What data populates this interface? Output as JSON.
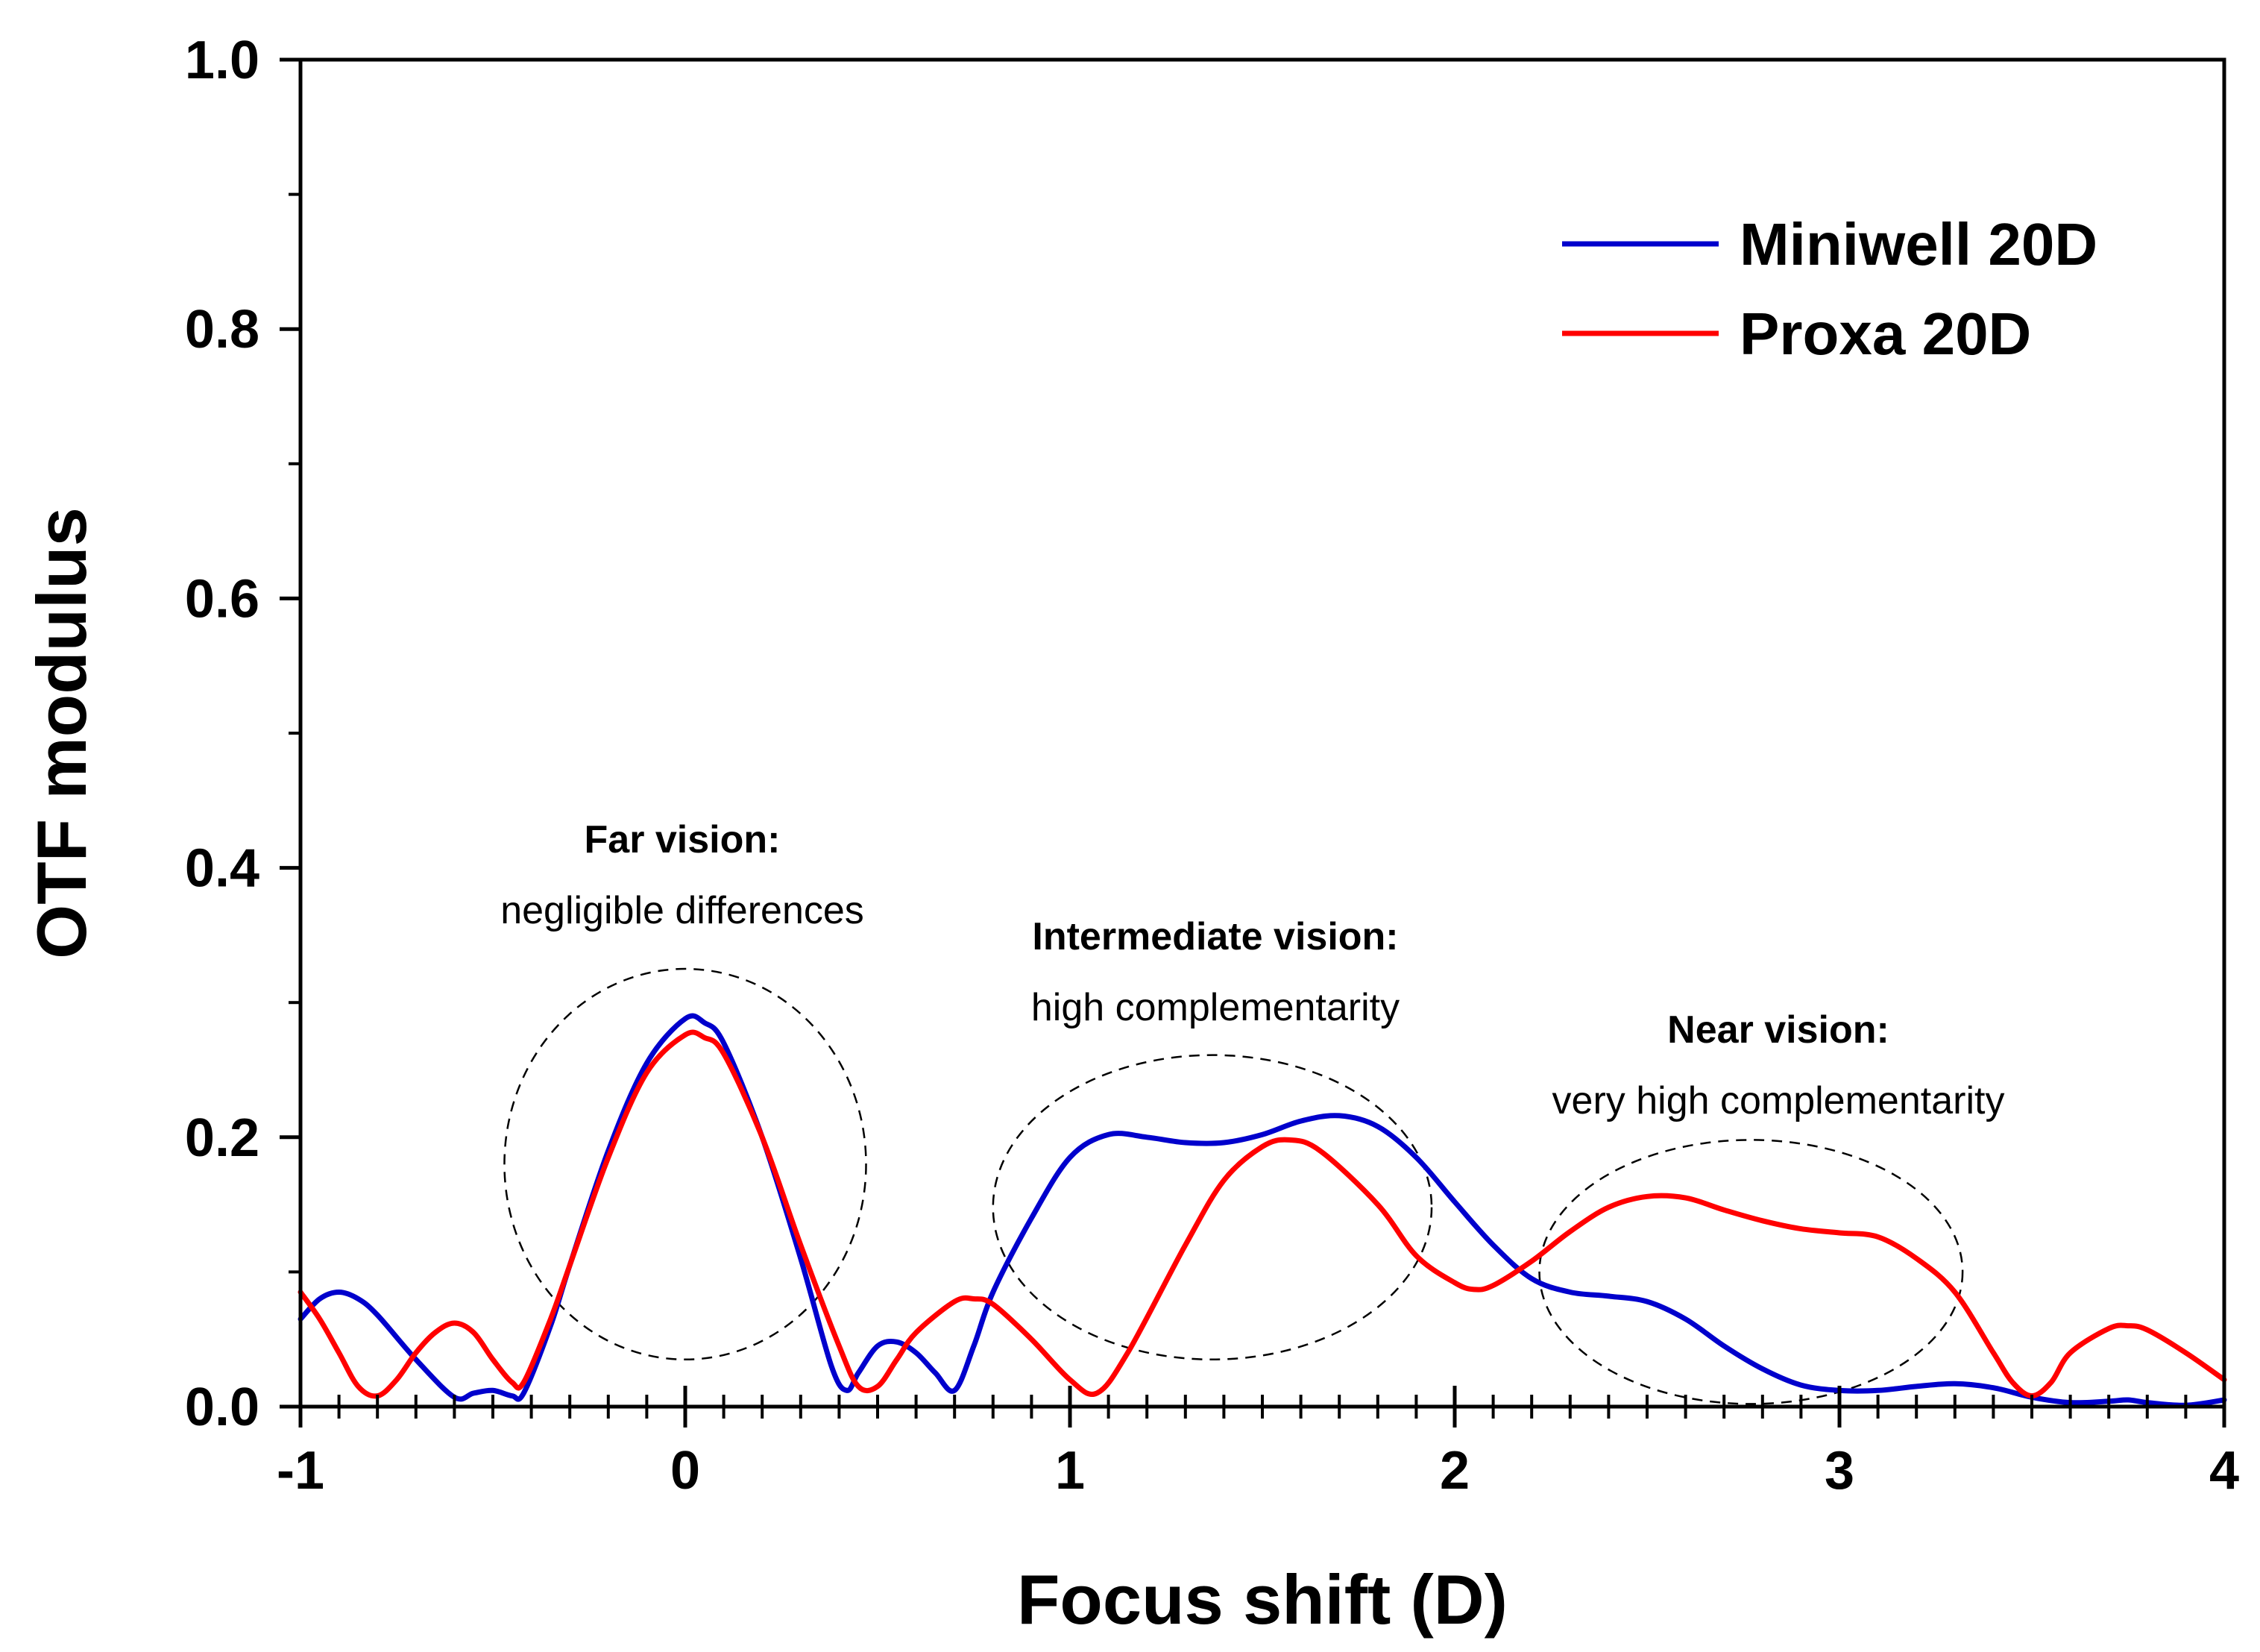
{
  "chart_data": {
    "type": "line",
    "xlabel": "Focus shift (D)",
    "ylabel": "OTF modulus",
    "xlim": [
      -1,
      4
    ],
    "ylim": [
      0,
      1
    ],
    "x_ticks": [
      -1,
      0,
      1,
      2,
      3,
      4
    ],
    "x_tick_labels": [
      "-1",
      "0",
      "1",
      "2",
      "3",
      "4"
    ],
    "y_ticks": [
      0,
      0.2,
      0.4,
      0.6,
      0.8,
      1.0
    ],
    "y_tick_labels": [
      "0.0",
      "0.2",
      "0.4",
      "0.6",
      "0.8",
      "1.0"
    ],
    "grid": false,
    "legend_position": "top-right",
    "series": [
      {
        "name": "Miniwell 20D",
        "color": "#0000cc",
        "x": [
          -1.0,
          -0.95,
          -0.9,
          -0.85,
          -0.8,
          -0.7,
          -0.6,
          -0.55,
          -0.5,
          -0.45,
          -0.42,
          -0.35,
          -0.3,
          -0.2,
          -0.1,
          0.0,
          0.05,
          0.1,
          0.2,
          0.3,
          0.38,
          0.42,
          0.45,
          0.5,
          0.55,
          0.6,
          0.65,
          0.7,
          0.75,
          0.8,
          0.9,
          1.0,
          1.1,
          1.2,
          1.3,
          1.4,
          1.5,
          1.6,
          1.7,
          1.8,
          1.9,
          2.0,
          2.1,
          2.2,
          2.3,
          2.4,
          2.5,
          2.6,
          2.7,
          2.8,
          2.9,
          3.0,
          3.1,
          3.2,
          3.3,
          3.4,
          3.5,
          3.6,
          3.7,
          3.75,
          3.8,
          3.9,
          4.0
        ],
        "y": [
          0.065,
          0.08,
          0.085,
          0.08,
          0.068,
          0.035,
          0.007,
          0.01,
          0.012,
          0.008,
          0.01,
          0.06,
          0.105,
          0.19,
          0.255,
          0.288,
          0.285,
          0.27,
          0.2,
          0.11,
          0.03,
          0.012,
          0.025,
          0.045,
          0.048,
          0.04,
          0.025,
          0.012,
          0.045,
          0.085,
          0.14,
          0.185,
          0.202,
          0.2,
          0.196,
          0.196,
          0.202,
          0.212,
          0.216,
          0.208,
          0.185,
          0.152,
          0.12,
          0.095,
          0.085,
          0.082,
          0.078,
          0.065,
          0.045,
          0.028,
          0.016,
          0.012,
          0.012,
          0.015,
          0.017,
          0.014,
          0.007,
          0.003,
          0.004,
          0.005,
          0.003,
          0.001,
          0.005
        ]
      },
      {
        "name": "Proxa 20D",
        "color": "#ff0000",
        "x": [
          -1.0,
          -0.95,
          -0.9,
          -0.85,
          -0.8,
          -0.75,
          -0.7,
          -0.65,
          -0.6,
          -0.55,
          -0.5,
          -0.45,
          -0.42,
          -0.35,
          -0.3,
          -0.2,
          -0.1,
          0.0,
          0.05,
          0.1,
          0.2,
          0.3,
          0.4,
          0.45,
          0.5,
          0.55,
          0.6,
          0.7,
          0.75,
          0.8,
          0.9,
          1.0,
          1.07,
          1.15,
          1.3,
          1.4,
          1.5,
          1.57,
          1.65,
          1.8,
          1.9,
          2.0,
          2.05,
          2.1,
          2.2,
          2.3,
          2.4,
          2.5,
          2.6,
          2.7,
          2.8,
          2.9,
          3.0,
          3.1,
          3.2,
          3.3,
          3.4,
          3.45,
          3.5,
          3.55,
          3.6,
          3.7,
          3.75,
          3.8,
          3.9,
          4.0
        ],
        "y": [
          0.085,
          0.065,
          0.04,
          0.015,
          0.008,
          0.02,
          0.04,
          0.055,
          0.062,
          0.055,
          0.035,
          0.018,
          0.018,
          0.065,
          0.105,
          0.185,
          0.248,
          0.276,
          0.274,
          0.262,
          0.2,
          0.12,
          0.045,
          0.015,
          0.015,
          0.035,
          0.055,
          0.078,
          0.08,
          0.076,
          0.05,
          0.02,
          0.01,
          0.04,
          0.12,
          0.168,
          0.193,
          0.198,
          0.19,
          0.15,
          0.112,
          0.092,
          0.087,
          0.09,
          0.108,
          0.13,
          0.148,
          0.156,
          0.155,
          0.146,
          0.138,
          0.132,
          0.129,
          0.126,
          0.11,
          0.085,
          0.04,
          0.018,
          0.008,
          0.018,
          0.04,
          0.058,
          0.06,
          0.057,
          0.04,
          0.02
        ]
      }
    ],
    "annotations": [
      {
        "id": "far",
        "title": "Far vision:",
        "text": "negligible differences",
        "ellipse_center": [
          0.0,
          0.18
        ],
        "ellipse_radius": [
          0.47,
          0.145
        ]
      },
      {
        "id": "intermediate",
        "title": "Intermediate vision:",
        "text": "high complementarity",
        "ellipse_center": [
          1.37,
          0.148
        ],
        "ellipse_radius": [
          0.57,
          0.113
        ]
      },
      {
        "id": "near",
        "title": "Near vision:",
        "text": "very high complementarity",
        "ellipse_center": [
          2.77,
          0.1
        ],
        "ellipse_radius": [
          0.55,
          0.098
        ]
      }
    ]
  }
}
